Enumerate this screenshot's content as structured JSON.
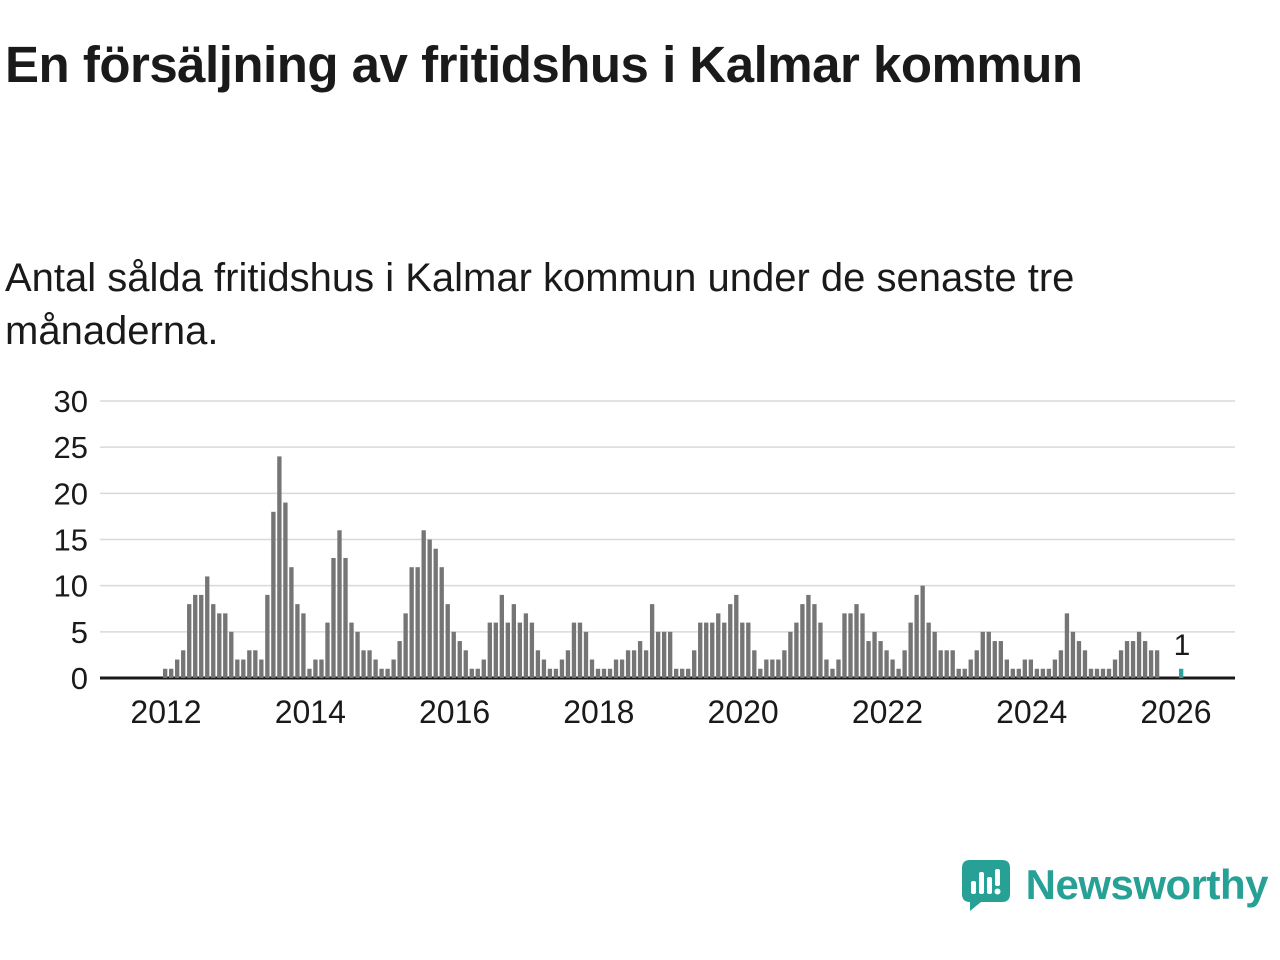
{
  "chart_data": {
    "type": "bar",
    "title": "En försäljning av fritidshus i Kalmar kommun",
    "subtitle": "Antal sålda fritidshus i Kalmar kommun under de senaste tre månaderna.",
    "xlabel": "",
    "ylabel": "",
    "ylim": [
      0,
      30
    ],
    "yticks": [
      0,
      5,
      10,
      15,
      20,
      25,
      30
    ],
    "xticks": [
      2012,
      2014,
      2016,
      2018,
      2020,
      2022,
      2024,
      2026
    ],
    "start": {
      "year": 2012,
      "month": 1
    },
    "frequency": "monthly-rolling-3-month-count",
    "grid": true,
    "legend_position": "none",
    "bar_color": "#757575",
    "highlight_color": "#2aa49b",
    "grid_color": "#d9d9d9",
    "axis_color": "#1a1a1a",
    "last_value_label": "1",
    "values": [
      1,
      1,
      2,
      3,
      8,
      9,
      9,
      11,
      8,
      7,
      7,
      5,
      2,
      2,
      3,
      3,
      2,
      9,
      18,
      24,
      19,
      12,
      8,
      7,
      1,
      2,
      2,
      6,
      13,
      16,
      13,
      6,
      5,
      3,
      3,
      2,
      1,
      1,
      2,
      4,
      7,
      12,
      12,
      16,
      15,
      14,
      12,
      8,
      5,
      4,
      3,
      1,
      1,
      2,
      6,
      6,
      9,
      6,
      8,
      6,
      7,
      6,
      3,
      2,
      1,
      1,
      2,
      3,
      6,
      6,
      5,
      2,
      1,
      1,
      1,
      2,
      2,
      3,
      3,
      4,
      3,
      8,
      5,
      5,
      5,
      1,
      1,
      1,
      3,
      6,
      6,
      6,
      7,
      6,
      8,
      9,
      6,
      6,
      3,
      1,
      2,
      2,
      2,
      3,
      5,
      6,
      8,
      9,
      8,
      6,
      2,
      1,
      2,
      7,
      7,
      8,
      7,
      4,
      5,
      4,
      3,
      2,
      1,
      3,
      6,
      9,
      10,
      6,
      5,
      3,
      3,
      3,
      1,
      1,
      2,
      3,
      5,
      5,
      4,
      4,
      2,
      1,
      1,
      2,
      2,
      1,
      1,
      1,
      2,
      3,
      7,
      5,
      4,
      3,
      1,
      1,
      1,
      1,
      2,
      3,
      4,
      4,
      5,
      4,
      3,
      3,
      0,
      0,
      0,
      1
    ]
  },
  "branding": {
    "name": "Newsworthy",
    "color": "#27a095"
  }
}
